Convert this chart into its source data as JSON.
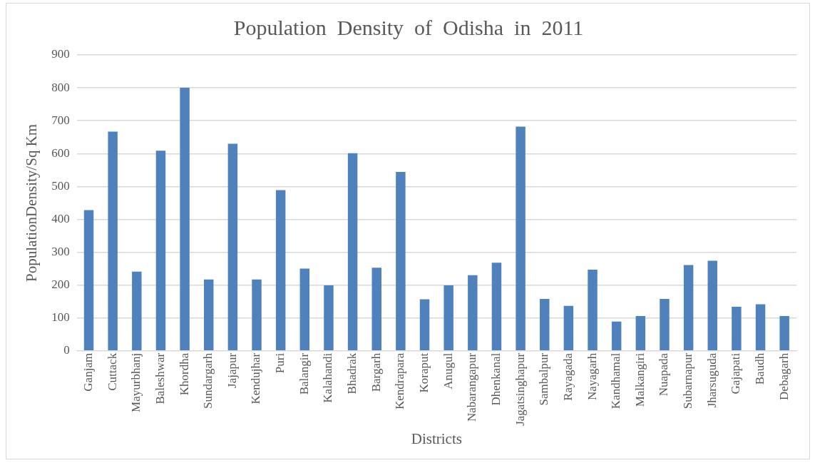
{
  "chart_data": {
    "type": "bar",
    "title": "Population  Density  of  Odisha  in  2011",
    "xlabel": "Districts",
    "ylabel": "PopulationDensity/Sq Km",
    "categories": [
      "Ganjam",
      "Cuttack",
      "Mayurbhanj",
      "Baleshwar",
      "Khordha",
      "Sundargarh",
      "Jajapur",
      "Kendujhar",
      "Puri",
      "Balangir",
      "Kalahandi",
      "Bhadrak",
      "Bargarh",
      "Kendrapara",
      "Koraput",
      "Anugul",
      "Nabarangapur",
      "Dhenkanal",
      "Jagatsinghapur",
      "Sambalpur",
      "Rayagada",
      "Nayagarh",
      "Kandhamal",
      "Malkangiri",
      "Nuapada",
      "Subarnapur",
      "Jharsuguda",
      "Gajapati",
      "Baudh",
      "Debagarh"
    ],
    "values": [
      428,
      667,
      241,
      609,
      800,
      217,
      630,
      217,
      489,
      250,
      199,
      601,
      253,
      544,
      157,
      199,
      230,
      268,
      682,
      158,
      137,
      247,
      89,
      106,
      158,
      261,
      274,
      134,
      142,
      106
    ],
    "color": "#4f81bd",
    "ylim": [
      0,
      900
    ],
    "yticks": [
      0,
      100,
      200,
      300,
      400,
      500,
      600,
      700,
      800,
      900
    ],
    "grid": "y"
  }
}
